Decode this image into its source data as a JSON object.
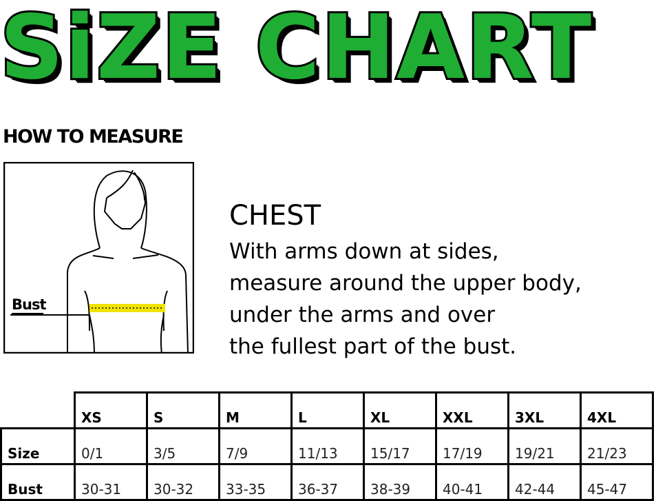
{
  "title": "SiZE CHART",
  "colors": {
    "title_fill": "#1fae33",
    "tape": "#f2e200"
  },
  "how_to_measure": "HOW TO MEASURE",
  "illustration": {
    "label": "Bust"
  },
  "chest": {
    "heading": "CHEST",
    "lines": [
      "With arms down at sides,",
      "measure around the upper body,",
      "under the arms and over",
      "the fullest part of the bust."
    ]
  },
  "table": {
    "headers": [
      "XS",
      "S",
      "M",
      "L",
      "XL",
      "XXL",
      "3XL",
      "4XL"
    ],
    "rows": [
      {
        "label": "Size",
        "values": [
          "0/1",
          "3/5",
          "7/9",
          "11/13",
          "15/17",
          "17/19",
          "19/21",
          "21/23"
        ]
      },
      {
        "label": "Bust",
        "values": [
          "30-31",
          "30-32",
          "33-35",
          "36-37",
          "38-39",
          "40-41",
          "42-44",
          "45-47"
        ]
      }
    ]
  }
}
